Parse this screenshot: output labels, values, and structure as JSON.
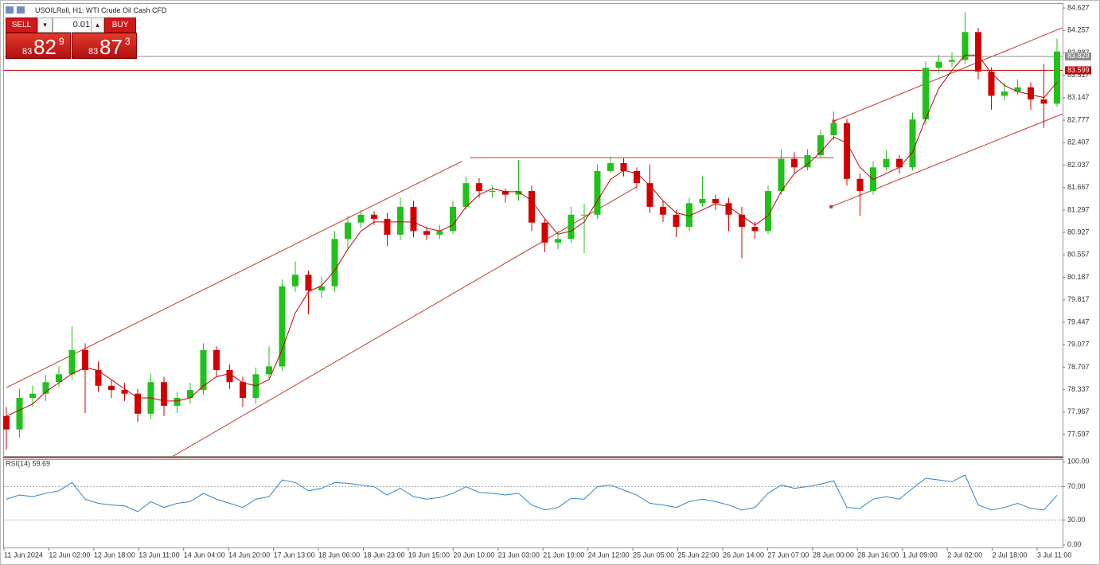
{
  "toolbar": {
    "title": "USOILRoll, H1:  WTI Crude Oil Cash CFD",
    "sell": "SELL",
    "buy": "BUY",
    "lot": "0.01",
    "sell_price": {
      "big": "83",
      "main": "82",
      "small": "9"
    },
    "buy_price": {
      "big": "83",
      "main": "87",
      "small": "3"
    }
  },
  "chart_data": [
    {
      "type": "candlestick",
      "up_color": "#22c01a",
      "down_color": "#d40000",
      "open": [
        77.9,
        77.68,
        78.2,
        78.27,
        78.46,
        78.59,
        78.99,
        78.66,
        78.4,
        78.33,
        78.27,
        77.94,
        78.46,
        78.07,
        78.2,
        78.33,
        78.99,
        78.66,
        78.46,
        78.2,
        78.59,
        78.72,
        80.04,
        80.23,
        79.97,
        80.04,
        80.82,
        81.09,
        81.22,
        81.15,
        80.89,
        81.35,
        80.95,
        80.89,
        80.95,
        81.35,
        81.74,
        81.61,
        81.61,
        81.55,
        81.61,
        81.09,
        80.76,
        80.82,
        81.22,
        81.22,
        81.94,
        82.07,
        81.94,
        81.74,
        81.35,
        81.22,
        81.02,
        81.41,
        81.48,
        81.41,
        81.22,
        81.02,
        80.95,
        81.61,
        82.14,
        82.0,
        82.2,
        82.53,
        82.73,
        81.81,
        81.61,
        82.0,
        82.14,
        82.0,
        82.79,
        83.64,
        83.74,
        83.77,
        84.23,
        83.58,
        83.18,
        83.25,
        83.32,
        83.12,
        83.05
      ],
      "high": [
        78.05,
        78.35,
        78.4,
        78.58,
        78.72,
        79.38,
        79.1,
        78.8,
        78.5,
        78.45,
        78.35,
        78.6,
        78.55,
        78.3,
        78.45,
        79.1,
        79.05,
        78.75,
        78.55,
        78.7,
        79.05,
        80.15,
        80.45,
        80.3,
        80.2,
        80.95,
        81.2,
        81.3,
        81.28,
        81.25,
        81.5,
        81.45,
        81.02,
        81.05,
        81.45,
        81.85,
        81.82,
        81.7,
        81.65,
        82.12,
        81.7,
        81.15,
        80.95,
        81.35,
        81.4,
        82.05,
        82.18,
        82.15,
        82.0,
        82.05,
        81.45,
        81.3,
        81.5,
        81.85,
        81.55,
        81.5,
        81.35,
        81.1,
        81.7,
        82.3,
        82.25,
        82.3,
        82.62,
        82.92,
        82.8,
        81.9,
        82.1,
        82.28,
        82.2,
        82.9,
        83.75,
        83.85,
        83.9,
        84.56,
        84.3,
        83.65,
        83.4,
        83.45,
        83.4,
        83.7,
        84.12
      ],
      "low": [
        77.35,
        77.55,
        78.05,
        78.15,
        78.38,
        78.5,
        77.95,
        78.3,
        78.2,
        78.15,
        77.8,
        77.85,
        77.9,
        77.95,
        78.1,
        78.25,
        78.55,
        78.35,
        78.05,
        78.1,
        78.5,
        78.65,
        79.95,
        79.58,
        79.85,
        79.95,
        80.65,
        81.0,
        81.05,
        80.7,
        80.8,
        80.85,
        80.8,
        80.82,
        80.9,
        81.3,
        81.5,
        81.5,
        81.42,
        81.45,
        80.95,
        80.6,
        80.65,
        80.75,
        80.59,
        81.15,
        81.9,
        81.85,
        81.65,
        81.25,
        81.1,
        80.85,
        80.95,
        81.35,
        81.3,
        80.95,
        80.5,
        80.82,
        80.9,
        81.55,
        81.9,
        81.95,
        82.15,
        82.45,
        81.7,
        81.2,
        81.55,
        81.95,
        81.9,
        81.95,
        82.7,
        83.55,
        83.65,
        83.7,
        83.45,
        82.95,
        83.1,
        83.2,
        82.95,
        82.65,
        83.0
      ],
      "close": [
        77.68,
        78.2,
        78.27,
        78.46,
        78.59,
        78.99,
        78.66,
        78.4,
        78.33,
        78.27,
        77.94,
        78.46,
        78.07,
        78.2,
        78.33,
        78.99,
        78.66,
        78.46,
        78.2,
        78.59,
        78.72,
        80.04,
        80.23,
        79.97,
        80.04,
        80.82,
        81.09,
        81.22,
        81.15,
        80.89,
        81.35,
        80.95,
        80.89,
        80.95,
        81.35,
        81.74,
        81.61,
        81.61,
        81.55,
        81.61,
        81.09,
        80.76,
        80.82,
        81.22,
        81.22,
        81.94,
        82.07,
        81.94,
        81.74,
        81.35,
        81.22,
        81.02,
        81.41,
        81.48,
        81.41,
        81.22,
        81.02,
        80.95,
        81.61,
        82.14,
        82.0,
        82.2,
        82.53,
        82.73,
        81.81,
        81.61,
        82.0,
        82.14,
        82.0,
        82.79,
        83.64,
        83.74,
        83.77,
        84.23,
        83.58,
        83.18,
        83.25,
        83.32,
        83.12,
        83.05,
        83.91
      ],
      "ma": {
        "color": "#c00000",
        "values": [
          77.9,
          78.0,
          78.1,
          78.3,
          78.45,
          78.6,
          78.7,
          78.65,
          78.5,
          78.35,
          78.2,
          78.2,
          78.15,
          78.15,
          78.2,
          78.4,
          78.55,
          78.6,
          78.45,
          78.4,
          78.5,
          79.0,
          79.6,
          79.95,
          80.05,
          80.3,
          80.65,
          80.95,
          81.1,
          81.1,
          81.1,
          81.1,
          81.0,
          80.95,
          81.05,
          81.35,
          81.55,
          81.65,
          81.6,
          81.6,
          81.45,
          81.15,
          80.9,
          80.95,
          81.1,
          81.45,
          81.8,
          81.95,
          81.9,
          81.7,
          81.45,
          81.25,
          81.2,
          81.3,
          81.4,
          81.35,
          81.2,
          81.05,
          81.2,
          81.6,
          81.9,
          82.05,
          82.25,
          82.5,
          82.4,
          82.0,
          81.8,
          81.9,
          82.0,
          82.25,
          82.8,
          83.3,
          83.6,
          83.85,
          83.85,
          83.55,
          83.35,
          83.25,
          83.2,
          83.15,
          83.4
        ]
      },
      "trendlines": [
        {
          "x": [
            0,
            34.7
          ],
          "y": [
            78.37,
            82.1
          ],
          "color": "#c0392b"
        },
        {
          "x": [
            12.7,
            48.0
          ],
          "y": [
            77.24,
            81.68
          ],
          "color": "#c0392b"
        },
        {
          "x": [
            35.3,
            63.0
          ],
          "y": [
            82.16,
            82.16
          ],
          "color": "#c0392b"
        },
        {
          "x": [
            63.0,
            80.4
          ],
          "y": [
            82.76,
            84.3
          ],
          "color": "#c0392b"
        },
        {
          "x": [
            62.8,
            80.4
          ],
          "y": [
            81.35,
            82.88
          ],
          "color": "#c0392b"
        }
      ],
      "price_lines": [
        {
          "value": 83.829,
          "color": "#8c8c8c"
        },
        {
          "value": 83.599,
          "color": "#c00000"
        }
      ],
      "ylim": [
        77.243,
        84.693
      ],
      "yticks": [
        84.627,
        84.257,
        83.887,
        83.517,
        83.147,
        82.777,
        82.407,
        82.037,
        81.667,
        81.297,
        80.927,
        80.557,
        80.187,
        79.817,
        79.447,
        79.077,
        78.707,
        78.337,
        77.967,
        77.597
      ],
      "x_labels": [
        "11 Jun 2024",
        "12 Jun 02:00",
        "12 Jun 18:00",
        "13 Jun 11:00",
        "14 Jun 04:00",
        "14 Jun 20:00",
        "17 Jun 13:00",
        "18 Jun 06:00",
        "18 Jun 23:00",
        "19 Jun 15:00",
        "20 Jun 10:00",
        "21 Jun 03:00",
        "21 Jun 19:00",
        "24 Jun 12:00",
        "25 Jun 05:00",
        "25 Jun 22:00",
        "26 Jun 14:00",
        "27 Jun 07:00",
        "28 Jun 00:00",
        "28 Jun 16:00",
        "1 Jul 09:00",
        "2 Jul 02:00",
        "2 Jul 18:00",
        "3 Jul 11:00"
      ]
    },
    {
      "type": "line",
      "title": "RSI(14) 59.69",
      "color": "#2e86c1",
      "values": [
        55,
        60,
        58,
        62,
        65,
        75,
        55,
        50,
        48,
        47,
        40,
        52,
        45,
        50,
        52,
        62,
        55,
        50,
        45,
        55,
        58,
        78,
        75,
        65,
        68,
        75,
        74,
        72,
        70,
        60,
        68,
        58,
        55,
        57,
        62,
        70,
        63,
        62,
        60,
        62,
        48,
        42,
        45,
        56,
        55,
        70,
        72,
        66,
        60,
        50,
        48,
        45,
        52,
        55,
        52,
        48,
        42,
        45,
        62,
        72,
        68,
        70,
        73,
        77,
        45,
        44,
        55,
        58,
        55,
        68,
        80,
        78,
        76,
        84,
        48,
        42,
        45,
        50,
        44,
        42,
        59.69
      ],
      "ylim": [
        -3,
        103
      ],
      "yticks": [
        {
          "value": 100,
          "label": "100.00"
        },
        {
          "value": 70,
          "label": "70.00"
        },
        {
          "value": 30,
          "label": "30.00"
        },
        {
          "value": 0,
          "label": "0.00"
        }
      ],
      "levels": [
        70,
        30
      ]
    }
  ]
}
